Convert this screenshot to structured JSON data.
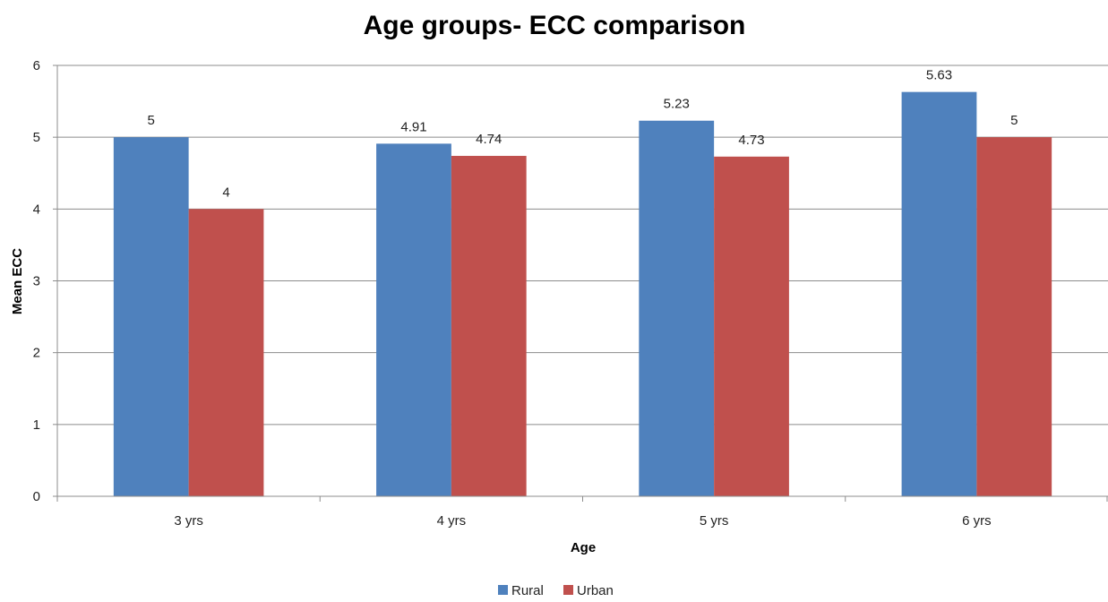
{
  "chart_data": {
    "type": "bar",
    "title": "Age groups- ECC comparison",
    "xlabel": "Age",
    "ylabel": "Mean ECC",
    "categories": [
      "3 yrs",
      "4 yrs",
      "5 yrs",
      "6 yrs"
    ],
    "series": [
      {
        "name": "Rural",
        "color": "#4F81BD",
        "values": [
          5,
          4.91,
          5.23,
          5.63
        ],
        "labels": [
          "5",
          "4.91",
          "5.23",
          "5.63"
        ]
      },
      {
        "name": "Urban",
        "color": "#C0504D",
        "values": [
          4,
          4.74,
          4.73,
          5
        ],
        "labels": [
          "4",
          "4.74",
          "4.73",
          "5"
        ]
      }
    ],
    "ylim": [
      0,
      6
    ],
    "yticks": [
      "0",
      "1",
      "2",
      "3",
      "4",
      "5",
      "6"
    ],
    "grid": true,
    "legend": "bottom"
  }
}
